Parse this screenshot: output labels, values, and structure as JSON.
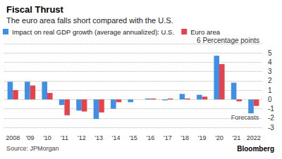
{
  "chart_data": {
    "type": "bar",
    "title": "Fiscal Thrust",
    "subtitle": "The euro area falls short compared with the U.S.",
    "source": "Source: JPMorgan",
    "credit": "Bloomberg",
    "annotation": "Forecasts",
    "categories": [
      "2008",
      "'09",
      "'10",
      "'11",
      "'12",
      "'13",
      "'14",
      "'15",
      "'16",
      "'17",
      "'18",
      "'19",
      "'20",
      "'21",
      "2022"
    ],
    "series": [
      {
        "name": "Impact on real GDP growth (average annualized): U.S.",
        "color": "#3f8fe6",
        "values": [
          1.9,
          1.9,
          1.9,
          -0.6,
          -1.2,
          -2.1,
          -1.0,
          -0.3,
          0.1,
          -0.1,
          0.6,
          0.5,
          4.7,
          1.8,
          -1.5
        ]
      },
      {
        "name": "Euro area",
        "color": "#e5434b",
        "values": [
          1.0,
          1.5,
          0.7,
          -1.7,
          -1.3,
          -1.4,
          -0.3,
          0.0,
          0.1,
          0.1,
          0.1,
          0.3,
          3.8,
          -0.2,
          -0.7
        ]
      }
    ],
    "ylim": [
      -3,
      6
    ],
    "yticks": [
      -3,
      -2,
      -1,
      0,
      1,
      2,
      3,
      4,
      5,
      {
        "value": 6,
        "label": "6 Percentage points"
      }
    ],
    "grid": true,
    "legend": "top-left"
  }
}
